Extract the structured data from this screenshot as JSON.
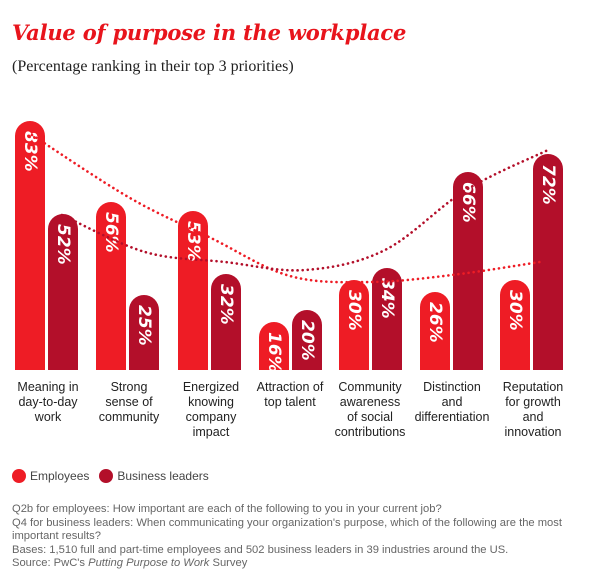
{
  "header": {
    "title": "Value of purpose in the workplace",
    "subtitle": "(Percentage ranking in their top 3 priorities)"
  },
  "colors": {
    "employees": "#ee1c25",
    "business_leaders": "#b30f2a"
  },
  "legend": {
    "employees": "Employees",
    "business_leaders": "Business leaders"
  },
  "chart_data": {
    "type": "bar",
    "title": "Value of purpose in the workplace",
    "subtitle": "(Percentage ranking in their top 3 priorities)",
    "categories": [
      "Meaning in day-to-day work",
      "Strong sense of community",
      "Energized knowing company impact",
      "Attraction of top talent",
      "Community awareness of social contributions",
      "Distinction and differentiation",
      "Reputation for growth and innovation"
    ],
    "category_lines": [
      [
        "Meaning in",
        "day-to-day",
        "work"
      ],
      [
        "Strong",
        "sense of",
        "community"
      ],
      [
        "Energized",
        "knowing",
        "company",
        "impact"
      ],
      [
        "Attraction of",
        "top talent"
      ],
      [
        "Community",
        "awareness",
        "of social",
        "contributions"
      ],
      [
        "Distinction",
        "and",
        "differentiation"
      ],
      [
        "Reputation",
        "for growth",
        "and",
        "innovation"
      ]
    ],
    "series": [
      {
        "name": "Employees",
        "values": [
          83,
          56,
          53,
          16,
          30,
          26,
          30
        ]
      },
      {
        "name": "Business leaders",
        "values": [
          52,
          25,
          32,
          20,
          34,
          66,
          72
        ]
      }
    ],
    "value_labels": {
      "Employees": [
        "83%",
        "56%",
        "53%",
        "16%",
        "30%",
        "26%",
        "30%"
      ],
      "Business leaders": [
        "52%",
        "25%",
        "32%",
        "20%",
        "34%",
        "66%",
        "72%"
      ]
    },
    "ylim": [
      0,
      100
    ],
    "grid": false,
    "legend_position": "bottom-left",
    "trend_lines": "dotted"
  },
  "notes": {
    "q2b": "Q2b for employees: How important are each of the following to you in your current job?",
    "q4": "Q4 for business leaders: When communicating your organization's purpose, which of the following are the most important results?",
    "bases": "Bases: 1,510 full and part-time employees and 502 business leaders in 39 industries around the US.",
    "source_prefix": "Source: PwC's ",
    "source_title": "Putting Purpose to Work",
    "source_suffix": " Survey"
  }
}
